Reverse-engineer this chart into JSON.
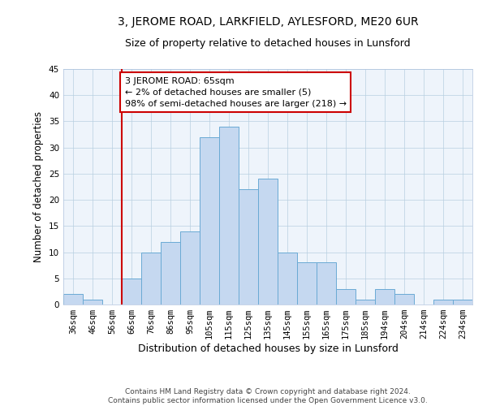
{
  "title1": "3, JEROME ROAD, LARKFIELD, AYLESFORD, ME20 6UR",
  "title2": "Size of property relative to detached houses in Lunsford",
  "xlabel": "Distribution of detached houses by size in Lunsford",
  "ylabel": "Number of detached properties",
  "footnote": "Contains HM Land Registry data © Crown copyright and database right 2024.\nContains public sector information licensed under the Open Government Licence v3.0.",
  "bin_labels": [
    "36sqm",
    "46sqm",
    "56sqm",
    "66sqm",
    "76sqm",
    "86sqm",
    "95sqm",
    "105sqm",
    "115sqm",
    "125sqm",
    "135sqm",
    "145sqm",
    "155sqm",
    "165sqm",
    "175sqm",
    "185sqm",
    "194sqm",
    "204sqm",
    "214sqm",
    "224sqm",
    "234sqm"
  ],
  "bar_heights": [
    2,
    1,
    0,
    5,
    10,
    12,
    14,
    32,
    34,
    22,
    24,
    10,
    8,
    8,
    3,
    1,
    3,
    2,
    0,
    1,
    1
  ],
  "bar_color": "#c5d8f0",
  "bar_edge_color": "#6aaad4",
  "highlight_bar_index": 3,
  "highlight_line_color": "#cc0000",
  "annotation_text": "3 JEROME ROAD: 65sqm\n← 2% of detached houses are smaller (5)\n98% of semi-detached houses are larger (218) →",
  "annotation_box_edge_color": "#cc0000",
  "ylim": [
    0,
    45
  ],
  "yticks": [
    0,
    5,
    10,
    15,
    20,
    25,
    30,
    35,
    40,
    45
  ],
  "grid_color": "#b8cfe0",
  "bg_color": "#eef4fb",
  "title1_fontsize": 10,
  "title2_fontsize": 9,
  "axis_label_fontsize": 8.5,
  "tick_fontsize": 7.5,
  "annotation_fontsize": 8,
  "footnote_fontsize": 6.5
}
